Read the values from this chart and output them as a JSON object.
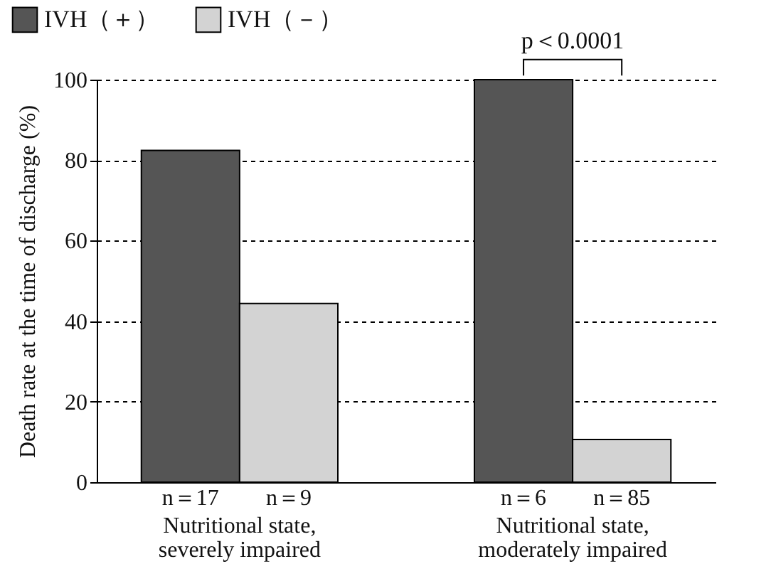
{
  "chart_data": {
    "type": "bar",
    "ylabel": "Death rate at the time of discharge (%)",
    "categories": [
      "Nutritional state, severely impaired",
      "Nutritional state, moderately impaired"
    ],
    "series": [
      {
        "name": "IVH（＋）",
        "color": "#555555",
        "values": [
          82.4,
          100
        ]
      },
      {
        "name": "IVH（－）",
        "color": "#d3d3d3",
        "values": [
          44.4,
          10.6
        ]
      }
    ],
    "ylim": [
      0,
      100
    ],
    "yticks": [
      0,
      20,
      40,
      60,
      80,
      100
    ],
    "grid": "y",
    "legend": "top left",
    "annotations": [
      "n＝17",
      "n＝9",
      "n＝6",
      "n＝85",
      "p＜0.0001"
    ]
  }
}
